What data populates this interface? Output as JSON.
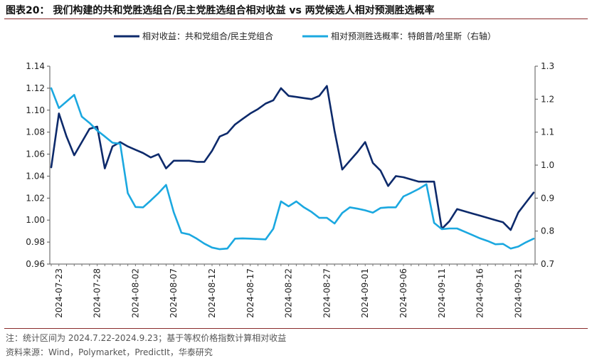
{
  "figure_title": "图表20：  我们构建的共和党胜选组合/民主党胜选组合相对收益 vs 两党候选人相对预测胜选概率",
  "notes": {
    "line1": "注：统计区间为 2024.7.22-2024.9.23；基于等权价格指数计算相对收益",
    "line2": "资料来源：Wind，Polymarket，PredictIt，华泰研究"
  },
  "colors": {
    "series1": "#0d2a6b",
    "series2": "#1ba8e0",
    "rule": "#8a2b2b"
  },
  "chart_data": {
    "type": "line",
    "x": [
      "2024-07-22",
      "2024-07-23",
      "2024-07-24",
      "2024-07-25",
      "2024-07-26",
      "2024-07-27",
      "2024-07-28",
      "2024-07-29",
      "2024-07-30",
      "2024-07-31",
      "2024-08-01",
      "2024-08-02",
      "2024-08-03",
      "2024-08-04",
      "2024-08-05",
      "2024-08-06",
      "2024-08-07",
      "2024-08-08",
      "2024-08-09",
      "2024-08-10",
      "2024-08-11",
      "2024-08-12",
      "2024-08-13",
      "2024-08-14",
      "2024-08-15",
      "2024-08-16",
      "2024-08-17",
      "2024-08-18",
      "2024-08-19",
      "2024-08-20",
      "2024-08-21",
      "2024-08-22",
      "2024-08-23",
      "2024-08-24",
      "2024-08-25",
      "2024-08-26",
      "2024-08-27",
      "2024-08-28",
      "2024-08-29",
      "2024-08-30",
      "2024-08-31",
      "2024-09-01",
      "2024-09-02",
      "2024-09-03",
      "2024-09-04",
      "2024-09-05",
      "2024-09-06",
      "2024-09-07",
      "2024-09-08",
      "2024-09-09",
      "2024-09-10",
      "2024-09-11",
      "2024-09-12",
      "2024-09-13",
      "2024-09-14",
      "2024-09-15",
      "2024-09-16",
      "2024-09-17",
      "2024-09-18",
      "2024-09-19",
      "2024-09-20",
      "2024-09-21",
      "2024-09-22",
      "2024-09-23"
    ],
    "x_tick_labels": [
      "2024-07-23",
      "2024-07-28",
      "2024-08-02",
      "2024-08-07",
      "2024-08-12",
      "2024-08-17",
      "2024-08-22",
      "2024-08-27",
      "2024-09-01",
      "2024-09-06",
      "2024-09-11",
      "2024-09-16",
      "2024-09-21"
    ],
    "series": [
      {
        "name": "相对收益：共和党组合/民主党组合",
        "axis": "left",
        "values": [
          1.048,
          1.097,
          1.076,
          1.059,
          1.071,
          1.083,
          1.085,
          1.047,
          1.067,
          1.071,
          1.067,
          1.064,
          1.061,
          1.057,
          1.06,
          1.047,
          1.054,
          1.054,
          1.054,
          1.053,
          1.053,
          1.063,
          1.076,
          1.079,
          1.087,
          1.092,
          1.097,
          1.101,
          1.106,
          1.109,
          1.12,
          1.113,
          1.112,
          1.111,
          1.11,
          1.113,
          1.122,
          1.081,
          1.046,
          1.054,
          1.062,
          1.071,
          1.052,
          1.045,
          1.031,
          1.04,
          1.039,
          1.037,
          1.035,
          1.035,
          1.035,
          0.992,
          0.999,
          1.01,
          1.008,
          1.006,
          1.004,
          1.002,
          1.0,
          0.998,
          0.991,
          1.007,
          1.016,
          1.025
        ]
      },
      {
        "name": "相对预测胜选概率：特朗普/哈里斯（右轴）",
        "axis": "right",
        "values": [
          1.233,
          1.173,
          1.193,
          1.213,
          1.147,
          1.128,
          1.105,
          1.087,
          1.068,
          1.065,
          0.915,
          0.873,
          0.872,
          0.893,
          0.915,
          0.94,
          0.857,
          0.795,
          0.79,
          0.777,
          0.762,
          0.75,
          0.745,
          0.747,
          0.777,
          0.778,
          0.777,
          0.776,
          0.775,
          0.807,
          0.89,
          0.875,
          0.89,
          0.872,
          0.858,
          0.84,
          0.84,
          0.823,
          0.855,
          0.872,
          0.868,
          0.863,
          0.856,
          0.87,
          0.872,
          0.872,
          0.905,
          0.916,
          0.928,
          0.942,
          0.825,
          0.806,
          0.808,
          0.808,
          0.798,
          0.788,
          0.778,
          0.77,
          0.76,
          0.761,
          0.747,
          0.753,
          0.766,
          0.777
        ]
      }
    ],
    "y_left": {
      "min": 0.96,
      "max": 1.14,
      "ticks": [
        "0.96",
        "0.98",
        "1.00",
        "1.02",
        "1.04",
        "1.06",
        "1.08",
        "1.10",
        "1.12",
        "1.14"
      ]
    },
    "y_right": {
      "min": 0.7,
      "max": 1.3,
      "ticks": [
        "0.7",
        "0.8",
        "0.9",
        "1.0",
        "1.1",
        "1.2",
        "1.3"
      ]
    },
    "legend_position": "top",
    "grid": false
  }
}
